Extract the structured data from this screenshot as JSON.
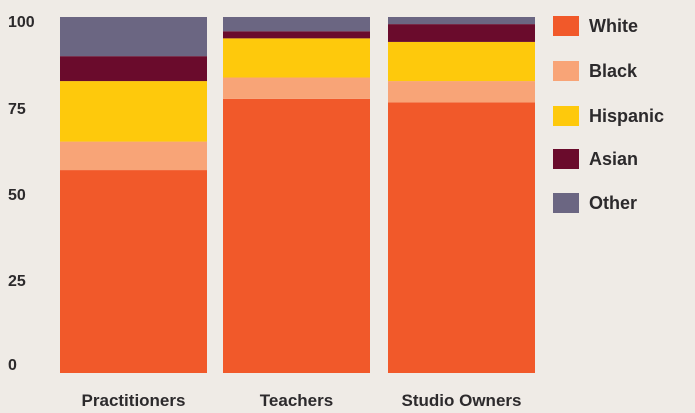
{
  "chart_data": {
    "type": "bar",
    "stacked": true,
    "categories": [
      "Practitioners",
      "Teachers",
      "Studio Owners"
    ],
    "series": [
      {
        "name": "White",
        "color": "#f1592a",
        "values": [
          57,
          77,
          76
        ]
      },
      {
        "name": "Black",
        "color": "#f8a477",
        "values": [
          8,
          6,
          6
        ]
      },
      {
        "name": "Hispanic",
        "color": "#fec90c",
        "values": [
          17,
          11,
          11
        ]
      },
      {
        "name": "Asian",
        "color": "#6a0b2c",
        "values": [
          7,
          2,
          5
        ]
      },
      {
        "name": "Other",
        "color": "#6b6682",
        "values": [
          11,
          4,
          2
        ]
      }
    ],
    "y_ticks": [
      "0",
      "25",
      "50",
      "75",
      "100"
    ],
    "ylim": [
      0,
      100
    ],
    "title": "",
    "xlabel": "",
    "ylabel": "",
    "grid": false,
    "legend_position": "right"
  }
}
